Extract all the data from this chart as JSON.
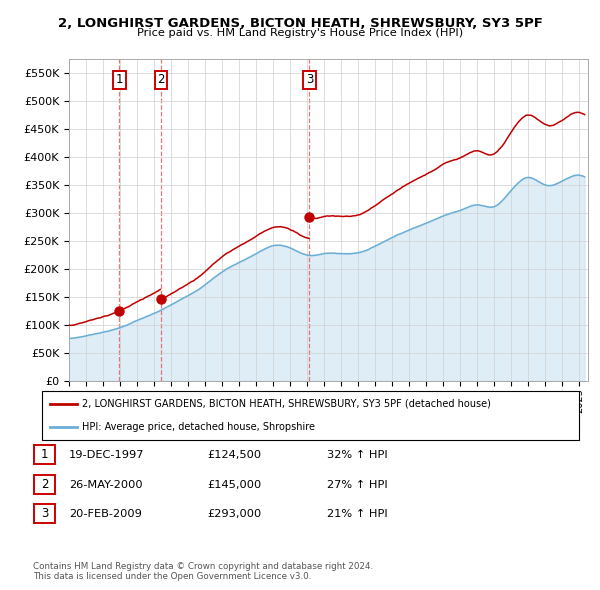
{
  "title": "2, LONGHIRST GARDENS, BICTON HEATH, SHREWSBURY, SY3 5PF",
  "subtitle": "Price paid vs. HM Land Registry's House Price Index (HPI)",
  "ylim": [
    0,
    575000
  ],
  "yticks": [
    0,
    50000,
    100000,
    150000,
    200000,
    250000,
    300000,
    350000,
    400000,
    450000,
    500000,
    550000
  ],
  "ytick_labels": [
    "£0",
    "£50K",
    "£100K",
    "£150K",
    "£200K",
    "£250K",
    "£300K",
    "£350K",
    "£400K",
    "£450K",
    "£500K",
    "£550K"
  ],
  "xmin": 1995.0,
  "xmax": 2025.5,
  "sales": [
    {
      "label": "1",
      "date_num": 1997.96,
      "price": 124500,
      "date_str": "19-DEC-1997",
      "price_str": "£124,500",
      "hpi_pct": "32%"
    },
    {
      "label": "2",
      "date_num": 2000.4,
      "price": 145000,
      "date_str": "26-MAY-2000",
      "price_str": "£145,000",
      "hpi_pct": "27%"
    },
    {
      "label": "3",
      "date_num": 2009.13,
      "price": 293000,
      "date_str": "20-FEB-2009",
      "price_str": "£293,000",
      "hpi_pct": "21%"
    }
  ],
  "hpi_color": "#6aaed6",
  "hpi_fill": "#c5dff0",
  "price_color": "#c00000",
  "dashed_color": "#e06060",
  "background_color": "#ffffff",
  "grid_color": "#d0d0d0",
  "legend_box_color": "#cc0000",
  "footer_text": "Contains HM Land Registry data © Crown copyright and database right 2024.\nThis data is licensed under the Open Government Licence v3.0.",
  "legend1": "2, LONGHIRST GARDENS, BICTON HEATH, SHREWSBURY, SY3 5PF (detached house)",
  "legend2": "HPI: Average price, detached house, Shropshire",
  "table_rows": [
    [
      "1",
      "19-DEC-1997",
      "£124,500",
      "32% ↑ HPI"
    ],
    [
      "2",
      "26-MAY-2000",
      "£145,000",
      "27% ↑ HPI"
    ],
    [
      "3",
      "20-FEB-2009",
      "£293,000",
      "21% ↑ HPI"
    ]
  ],
  "hpi_knots_x": [
    1995.0,
    1996.0,
    1997.0,
    1998.0,
    1999.0,
    2000.0,
    2001.0,
    2002.0,
    2003.0,
    2004.0,
    2005.0,
    2006.0,
    2007.0,
    2008.0,
    2009.0,
    2010.0,
    2011.0,
    2012.0,
    2013.0,
    2014.0,
    2015.0,
    2016.0,
    2017.0,
    2018.0,
    2019.0,
    2020.0,
    2021.0,
    2022.0,
    2023.0,
    2024.0,
    2025.3
  ],
  "hpi_knots_y": [
    75000,
    80000,
    87000,
    95000,
    108000,
    120000,
    135000,
    152000,
    172000,
    195000,
    212000,
    228000,
    242000,
    238000,
    225000,
    228000,
    228000,
    230000,
    242000,
    258000,
    272000,
    284000,
    298000,
    308000,
    318000,
    315000,
    345000,
    368000,
    355000,
    362000,
    368000
  ]
}
